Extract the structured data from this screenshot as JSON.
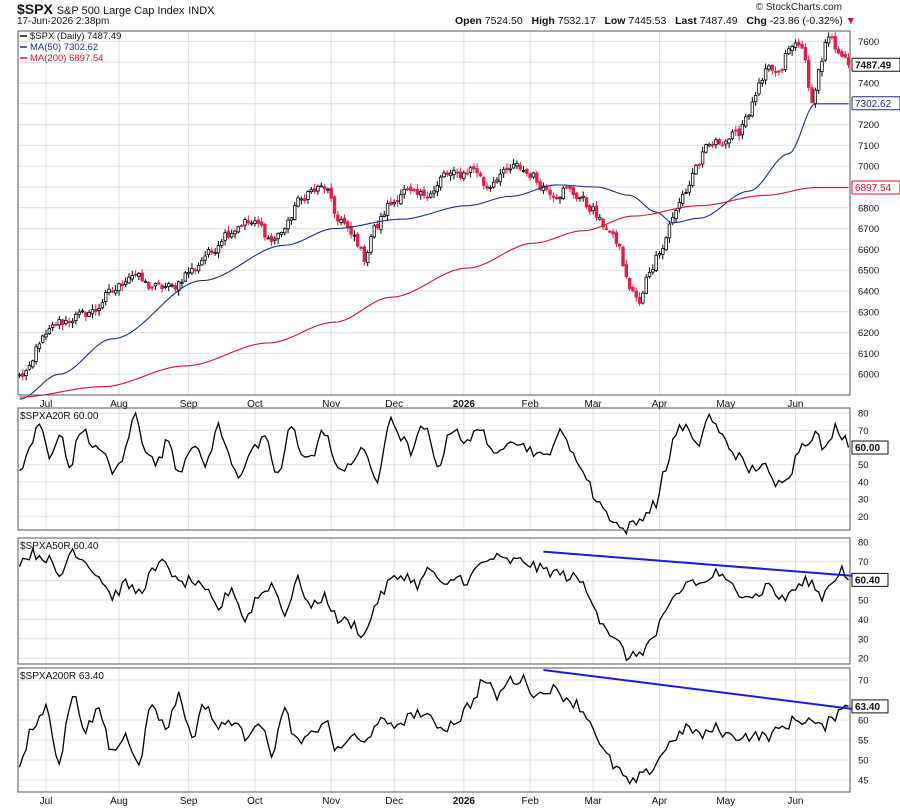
{
  "header": {
    "symbol": "$SPX",
    "name": "S&P 500 Large Cap Index",
    "exchange": "INDX",
    "date": "17-Jun-2026 2:38pm",
    "credit": "© StockCharts.com",
    "ohlc": {
      "open_label": "Open",
      "open": "7524.50",
      "high_label": "High",
      "high": "7532.17",
      "low_label": "Low",
      "low": "7445.53",
      "last_label": "Last",
      "last": "7487.49",
      "chg_label": "Chg",
      "chg": "-23.86 (-0.32%)",
      "chg_arrow": "▼"
    }
  },
  "colors": {
    "up": "#ffffff",
    "down": "#e0204a",
    "ma50": "#1a2f8c",
    "ma200": "#d0142c",
    "trend": "#1c1cd8",
    "breadth": "#000000",
    "grid": "#e0e0e0"
  },
  "chart_data": [
    {
      "type": "candlestick",
      "title": "$SPX (Daily) 7487.49",
      "series": [
        {
          "name": "$SPX (Daily)",
          "last": "7487.49"
        },
        {
          "name": "MA(50)",
          "last": "7302.62",
          "points": [
            [
              0,
              5880
            ],
            [
              12,
              6000
            ],
            [
              28,
              6170
            ],
            [
              55,
              6450
            ],
            [
              80,
              6620
            ],
            [
              95,
              6700
            ],
            [
              115,
              6745
            ],
            [
              135,
              6810
            ],
            [
              148,
              6855
            ],
            [
              162,
              6910
            ],
            [
              174,
              6900
            ],
            [
              184,
              6860
            ],
            [
              192,
              6780
            ],
            [
              197,
              6728
            ],
            [
              205,
              6750
            ],
            [
              220,
              6880
            ],
            [
              232,
              7060
            ],
            [
              240,
              7300
            ]
          ]
        },
        {
          "name": "MA(200)",
          "last": "6897.54",
          "points": [
            [
              0,
              5890
            ],
            [
              25,
              5940
            ],
            [
              50,
              6040
            ],
            [
              75,
              6150
            ],
            [
              95,
              6250
            ],
            [
              112,
              6370
            ],
            [
              135,
              6510
            ],
            [
              155,
              6630
            ],
            [
              170,
              6690
            ],
            [
              185,
              6760
            ],
            [
              205,
              6810
            ],
            [
              225,
              6860
            ],
            [
              240,
              6897
            ]
          ]
        }
      ],
      "anchors": [
        [
          0,
          5990
        ],
        [
          3,
          6020
        ],
        [
          6,
          6160
        ],
        [
          12,
          6250
        ],
        [
          22,
          6300
        ],
        [
          28,
          6400
        ],
        [
          34,
          6480
        ],
        [
          40,
          6420
        ],
        [
          46,
          6420
        ],
        [
          52,
          6500
        ],
        [
          57,
          6580
        ],
        [
          63,
          6680
        ],
        [
          68,
          6730
        ],
        [
          72,
          6720
        ],
        [
          76,
          6640
        ],
        [
          80,
          6700
        ],
        [
          84,
          6830
        ],
        [
          88,
          6880
        ],
        [
          92,
          6900
        ],
        [
          96,
          6750
        ],
        [
          101,
          6660
        ],
        [
          104,
          6560
        ],
        [
          107,
          6700
        ],
        [
          112,
          6820
        ],
        [
          116,
          6880
        ],
        [
          120,
          6860
        ],
        [
          125,
          6880
        ],
        [
          128,
          6960
        ],
        [
          133,
          6960
        ],
        [
          137,
          6990
        ],
        [
          141,
          6900
        ],
        [
          145,
          6960
        ],
        [
          150,
          7000
        ],
        [
          154,
          6960
        ],
        [
          158,
          6900
        ],
        [
          162,
          6860
        ],
        [
          165,
          6890
        ],
        [
          169,
          6850
        ],
        [
          172,
          6800
        ],
        [
          176,
          6720
        ],
        [
          180,
          6640
        ],
        [
          184,
          6420
        ],
        [
          187,
          6340
        ],
        [
          190,
          6500
        ],
        [
          194,
          6620
        ],
        [
          197,
          6760
        ],
        [
          201,
          6880
        ],
        [
          204,
          7000
        ],
        [
          208,
          7100
        ],
        [
          212,
          7120
        ],
        [
          216,
          7150
        ],
        [
          220,
          7260
        ],
        [
          223,
          7380
        ],
        [
          226,
          7470
        ],
        [
          229,
          7440
        ],
        [
          232,
          7560
        ],
        [
          235,
          7600
        ],
        [
          237,
          7500
        ],
        [
          239,
          7300
        ],
        [
          241,
          7450
        ],
        [
          244,
          7620
        ],
        [
          247,
          7560
        ],
        [
          250,
          7487.49
        ]
      ],
      "ylim": [
        5900,
        7650
      ],
      "y_ticks": [
        6000,
        6100,
        6200,
        6300,
        6400,
        6500,
        6600,
        6700,
        6800,
        6900,
        7000,
        7100,
        7200,
        7300,
        7400,
        7500,
        7600
      ],
      "value_labels": [
        "7487.49",
        "7302.62",
        "6897.54"
      ]
    },
    {
      "type": "line",
      "title": "$SPXA20R 60.00",
      "last": "60.00",
      "anchors": [
        [
          0,
          46
        ],
        [
          3,
          58
        ],
        [
          6,
          74
        ],
        [
          9,
          55
        ],
        [
          12,
          68
        ],
        [
          15,
          50
        ],
        [
          19,
          72
        ],
        [
          22,
          58
        ],
        [
          25,
          60
        ],
        [
          28,
          44
        ],
        [
          31,
          54
        ],
        [
          35,
          79
        ],
        [
          38,
          60
        ],
        [
          41,
          50
        ],
        [
          45,
          64
        ],
        [
          48,
          46
        ],
        [
          52,
          62
        ],
        [
          56,
          50
        ],
        [
          60,
          72
        ],
        [
          63,
          56
        ],
        [
          66,
          44
        ],
        [
          70,
          58
        ],
        [
          74,
          64
        ],
        [
          78,
          44
        ],
        [
          82,
          72
        ],
        [
          85,
          58
        ],
        [
          88,
          54
        ],
        [
          92,
          70
        ],
        [
          96,
          46
        ],
        [
          100,
          52
        ],
        [
          104,
          58
        ],
        [
          108,
          40
        ],
        [
          112,
          78
        ],
        [
          115,
          66
        ],
        [
          118,
          58
        ],
        [
          122,
          72
        ],
        [
          126,
          50
        ],
        [
          131,
          72
        ],
        [
          135,
          62
        ],
        [
          139,
          73
        ],
        [
          143,
          54
        ],
        [
          148,
          66
        ],
        [
          153,
          60
        ],
        [
          158,
          54
        ],
        [
          163,
          68
        ],
        [
          167,
          58
        ],
        [
          170,
          45
        ],
        [
          174,
          30
        ],
        [
          178,
          20
        ],
        [
          182,
          12
        ],
        [
          186,
          16
        ],
        [
          189,
          22
        ],
        [
          192,
          28
        ],
        [
          195,
          48
        ],
        [
          198,
          70
        ],
        [
          201,
          72
        ],
        [
          204,
          60
        ],
        [
          208,
          78
        ],
        [
          212,
          66
        ],
        [
          216,
          56
        ],
        [
          220,
          47
        ],
        [
          224,
          50
        ],
        [
          228,
          38
        ],
        [
          232,
          45
        ],
        [
          236,
          62
        ],
        [
          240,
          68
        ],
        [
          243,
          58
        ],
        [
          246,
          72
        ],
        [
          249,
          66
        ],
        [
          250,
          60
        ]
      ],
      "ylim": [
        12,
        83
      ],
      "y_ticks": [
        20,
        30,
        40,
        50,
        60,
        70,
        80
      ],
      "value_labels": [
        "60.00"
      ]
    },
    {
      "type": "line",
      "title": "$SPXA50R 60.40",
      "last": "60.40",
      "anchors": [
        [
          0,
          70
        ],
        [
          4,
          74
        ],
        [
          8,
          72
        ],
        [
          12,
          62
        ],
        [
          16,
          76
        ],
        [
          20,
          70
        ],
        [
          24,
          62
        ],
        [
          28,
          52
        ],
        [
          32,
          58
        ],
        [
          36,
          54
        ],
        [
          40,
          64
        ],
        [
          44,
          70
        ],
        [
          48,
          58
        ],
        [
          52,
          60
        ],
        [
          56,
          54
        ],
        [
          60,
          46
        ],
        [
          64,
          56
        ],
        [
          68,
          40
        ],
        [
          72,
          52
        ],
        [
          76,
          58
        ],
        [
          80,
          44
        ],
        [
          84,
          60
        ],
        [
          88,
          46
        ],
        [
          92,
          52
        ],
        [
          96,
          40
        ],
        [
          100,
          38
        ],
        [
          104,
          32
        ],
        [
          108,
          50
        ],
        [
          112,
          60
        ],
        [
          116,
          63
        ],
        [
          120,
          58
        ],
        [
          124,
          66
        ],
        [
          128,
          56
        ],
        [
          132,
          62
        ],
        [
          135,
          60
        ],
        [
          139,
          68
        ],
        [
          143,
          72
        ],
        [
          147,
          70
        ],
        [
          152,
          70
        ],
        [
          157,
          66
        ],
        [
          162,
          64
        ],
        [
          166,
          62
        ],
        [
          169,
          60
        ],
        [
          172,
          52
        ],
        [
          176,
          38
        ],
        [
          180,
          28
        ],
        [
          184,
          20
        ],
        [
          188,
          24
        ],
        [
          191,
          30
        ],
        [
          194,
          40
        ],
        [
          198,
          52
        ],
        [
          202,
          60
        ],
        [
          206,
          58
        ],
        [
          210,
          64
        ],
        [
          214,
          58
        ],
        [
          218,
          54
        ],
        [
          222,
          52
        ],
        [
          226,
          58
        ],
        [
          230,
          50
        ],
        [
          234,
          56
        ],
        [
          238,
          60
        ],
        [
          242,
          52
        ],
        [
          245,
          60
        ],
        [
          248,
          66
        ],
        [
          250,
          60.4
        ]
      ],
      "ylim": [
        17,
        82
      ],
      "y_ticks": [
        20,
        30,
        40,
        50,
        60,
        70,
        80
      ],
      "value_labels": [
        "60.40"
      ],
      "trend_line": [
        [
          158,
          75.0
        ],
        [
          292,
          57.0
        ]
      ]
    },
    {
      "type": "line",
      "title": "$SPXA200R 63.40",
      "last": "63.40",
      "anchors": [
        [
          0,
          48
        ],
        [
          4,
          58
        ],
        [
          8,
          63
        ],
        [
          12,
          50
        ],
        [
          16,
          66
        ],
        [
          20,
          58
        ],
        [
          24,
          62
        ],
        [
          28,
          52
        ],
        [
          32,
          56
        ],
        [
          36,
          50
        ],
        [
          40,
          64
        ],
        [
          44,
          58
        ],
        [
          48,
          66
        ],
        [
          52,
          56
        ],
        [
          56,
          64
        ],
        [
          60,
          58
        ],
        [
          64,
          60
        ],
        [
          68,
          56
        ],
        [
          72,
          60
        ],
        [
          76,
          52
        ],
        [
          80,
          62
        ],
        [
          84,
          54
        ],
        [
          88,
          56
        ],
        [
          92,
          60
        ],
        [
          96,
          52
        ],
        [
          100,
          56
        ],
        [
          104,
          54
        ],
        [
          108,
          60
        ],
        [
          112,
          58
        ],
        [
          116,
          60
        ],
        [
          120,
          62
        ],
        [
          124,
          60
        ],
        [
          128,
          58
        ],
        [
          132,
          60
        ],
        [
          136,
          64
        ],
        [
          140,
          70
        ],
        [
          144,
          66
        ],
        [
          148,
          70
        ],
        [
          152,
          70
        ],
        [
          156,
          66
        ],
        [
          160,
          68
        ],
        [
          164,
          66
        ],
        [
          168,
          64
        ],
        [
          172,
          60
        ],
        [
          176,
          52
        ],
        [
          180,
          48
        ],
        [
          184,
          44
        ],
        [
          188,
          46
        ],
        [
          191,
          48
        ],
        [
          194,
          52
        ],
        [
          198,
          56
        ],
        [
          202,
          58
        ],
        [
          206,
          56
        ],
        [
          210,
          58
        ],
        [
          214,
          56
        ],
        [
          218,
          56
        ],
        [
          222,
          56
        ],
        [
          226,
          56
        ],
        [
          230,
          58
        ],
        [
          234,
          60
        ],
        [
          238,
          60
        ],
        [
          242,
          58
        ],
        [
          245,
          60
        ],
        [
          248,
          64
        ],
        [
          250,
          63.4
        ]
      ],
      "ylim": [
        42,
        73
      ],
      "y_ticks": [
        45,
        50,
        55,
        60,
        63.4,
        70
      ],
      "value_labels": [
        "63.40"
      ],
      "trend_line": [
        [
          158,
          72.5
        ],
        [
          292,
          58.5
        ]
      ]
    }
  ],
  "x_axis": {
    "months": [
      {
        "label": "Jul",
        "index": 8
      },
      {
        "label": "Aug",
        "index": 30
      },
      {
        "label": "Sep",
        "index": 51
      },
      {
        "label": "Oct",
        "index": 71
      },
      {
        "label": "Nov",
        "index": 94
      },
      {
        "label": "Dec",
        "index": 113
      },
      {
        "label": "2026",
        "index": 134
      },
      {
        "label": "Feb",
        "index": 154
      },
      {
        "label": "Mar",
        "index": 173
      },
      {
        "label": "Apr",
        "index": 193
      },
      {
        "label": "May",
        "index": 213
      },
      {
        "label": "Jun",
        "index": 234
      }
    ],
    "bold_labels": [
      "2026"
    ]
  }
}
